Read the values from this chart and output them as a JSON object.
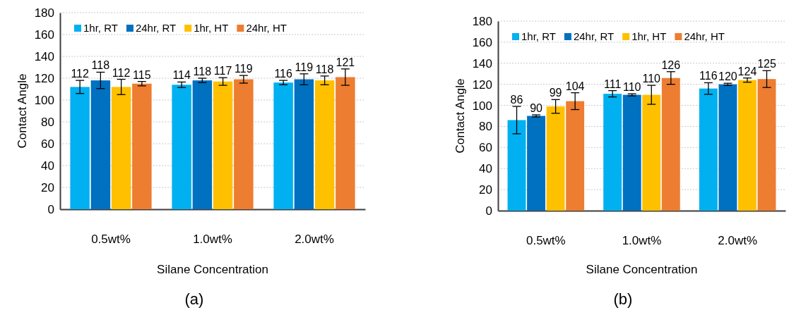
{
  "chart_data": [
    {
      "type": "bar",
      "xlabel": "Silane Concentration",
      "ylabel": "Contact Angle",
      "categories": [
        "0.5wt%",
        "1.0wt%",
        "2.0wt%"
      ],
      "series": [
        {
          "name": "1hr, RT",
          "color": "#00b0f0",
          "values": [
            112,
            114,
            116
          ],
          "errors": [
            6,
            2.5,
            2
          ]
        },
        {
          "name": "24hr, RT",
          "color": "#0070c0",
          "values": [
            118,
            118,
            119
          ],
          "errors": [
            7.5,
            2,
            5
          ]
        },
        {
          "name": "1hr, HT",
          "color": "#ffc000",
          "values": [
            112,
            117,
            118
          ],
          "errors": [
            7,
            3.5,
            4
          ]
        },
        {
          "name": "24hr, HT",
          "color": "#ed7d31",
          "values": [
            115,
            119,
            121
          ],
          "errors": [
            2,
            3.5,
            7.5
          ]
        }
      ],
      "ylim": [
        0,
        180
      ],
      "yticks": [
        0,
        20,
        40,
        60,
        80,
        100,
        120,
        140,
        160,
        180
      ],
      "grid": "y",
      "legend": "top",
      "data_labels": true,
      "annotations": [
        "(a)"
      ]
    },
    {
      "type": "bar",
      "xlabel": "Silane Concentration",
      "ylabel": "Contact Angle",
      "categories": [
        "0.5wt%",
        "1.0wt%",
        "2.0wt%"
      ],
      "series": [
        {
          "name": "1hr, RT",
          "color": "#00b0f0",
          "values": [
            86,
            111,
            116
          ],
          "errors": [
            13,
            3,
            5.5
          ]
        },
        {
          "name": "24hr, RT",
          "color": "#0070c0",
          "values": [
            90,
            110,
            120
          ],
          "errors": [
            1,
            1,
            1
          ]
        },
        {
          "name": "1hr, HT",
          "color": "#ffc000",
          "values": [
            99,
            110,
            124
          ],
          "errors": [
            6.5,
            9,
            2
          ]
        },
        {
          "name": "24hr, HT",
          "color": "#ed7d31",
          "values": [
            104,
            126,
            125
          ],
          "errors": [
            8,
            6,
            8
          ]
        }
      ],
      "ylim": [
        0,
        180
      ],
      "yticks": [
        0,
        20,
        40,
        60,
        80,
        100,
        120,
        140,
        160,
        180
      ],
      "grid": "y",
      "legend": "top",
      "data_labels": true,
      "annotations": [
        "(b)"
      ]
    }
  ]
}
